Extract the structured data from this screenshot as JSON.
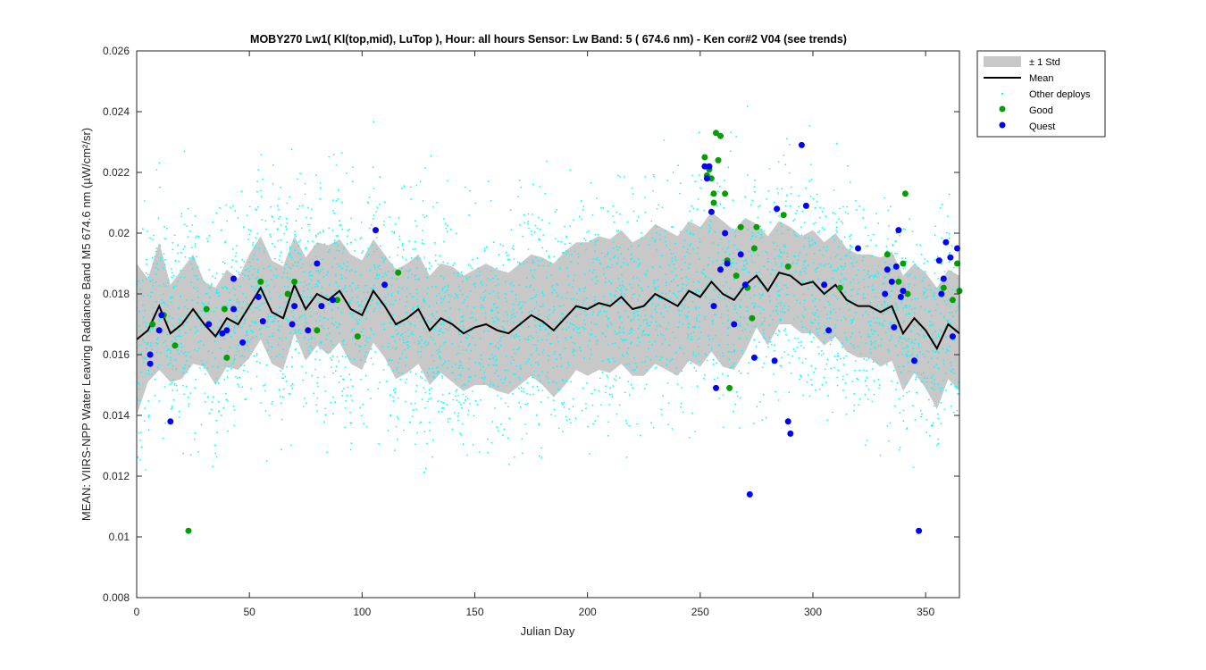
{
  "chart_data": {
    "type": "scatter",
    "title": "MOBY270   Lw1( Kl(top,mid), LuTop ),   Hour: all hours  Sensor: Lw Band: 5 ( 674.6 nm)  - Ken cor#2 V04 (see trends)",
    "xlabel": "Julian Day",
    "ylabel": "MEAN: VIIRS-NPP Water Leaving Radiance Band M5 674.6 nm (µW/cm²/sr)",
    "xlim": [
      0,
      365
    ],
    "ylim": [
      0.008,
      0.026
    ],
    "xticks": [
      0,
      50,
      100,
      150,
      200,
      250,
      300,
      350
    ],
    "yticks": [
      0.008,
      0.01,
      0.012,
      0.014,
      0.016,
      0.018,
      0.02,
      0.022,
      0.024,
      0.026
    ],
    "xtick_labels": [
      "0",
      "50",
      "100",
      "150",
      "200",
      "250",
      "300",
      "350"
    ],
    "ytick_labels": [
      "0.008",
      "0.01",
      "0.012",
      "0.014",
      "0.016",
      "0.018",
      "0.02",
      "0.022",
      "0.024",
      "0.026"
    ],
    "legend_position": "outside-top-right",
    "legend": [
      "± 1 Std",
      "Mean",
      "Other deploys",
      "Good",
      "Quest"
    ],
    "colors": {
      "std_band": "#c8c8c8",
      "mean": "#000000",
      "other": "#00ffff",
      "good": "#00a000",
      "quest": "#0000ff"
    },
    "mean": {
      "x": [
        0,
        5,
        10,
        15,
        20,
        25,
        30,
        35,
        40,
        45,
        50,
        55,
        60,
        65,
        70,
        75,
        80,
        85,
        90,
        95,
        100,
        105,
        110,
        115,
        120,
        125,
        130,
        135,
        140,
        145,
        150,
        155,
        160,
        165,
        170,
        175,
        180,
        185,
        190,
        195,
        200,
        205,
        210,
        215,
        220,
        225,
        230,
        235,
        240,
        245,
        250,
        255,
        260,
        265,
        270,
        275,
        280,
        285,
        290,
        295,
        300,
        305,
        310,
        315,
        320,
        325,
        330,
        335,
        340,
        345,
        350,
        355,
        360,
        365
      ],
      "y": [
        0.0165,
        0.0168,
        0.0176,
        0.0167,
        0.017,
        0.0175,
        0.017,
        0.0166,
        0.0172,
        0.017,
        0.0176,
        0.0182,
        0.0174,
        0.0172,
        0.0183,
        0.0175,
        0.018,
        0.0178,
        0.0181,
        0.0175,
        0.0173,
        0.0181,
        0.0176,
        0.017,
        0.0172,
        0.0175,
        0.0168,
        0.0172,
        0.017,
        0.0167,
        0.0169,
        0.017,
        0.0168,
        0.0167,
        0.017,
        0.0173,
        0.0171,
        0.0168,
        0.0172,
        0.0176,
        0.0175,
        0.0177,
        0.0176,
        0.0179,
        0.0175,
        0.0176,
        0.018,
        0.0178,
        0.0176,
        0.0181,
        0.0179,
        0.0184,
        0.018,
        0.0178,
        0.0183,
        0.0186,
        0.0181,
        0.0187,
        0.0186,
        0.0183,
        0.0184,
        0.018,
        0.0183,
        0.0178,
        0.0176,
        0.0176,
        0.0174,
        0.0176,
        0.0167,
        0.0172,
        0.0168,
        0.0162,
        0.017,
        0.0167
      ]
    },
    "std_upper": [
      0.019,
      0.0185,
      0.0197,
      0.0183,
      0.0188,
      0.0193,
      0.0184,
      0.0182,
      0.0188,
      0.0185,
      0.0193,
      0.0199,
      0.0191,
      0.0189,
      0.0199,
      0.0192,
      0.0197,
      0.0196,
      0.0198,
      0.0193,
      0.0191,
      0.0198,
      0.0193,
      0.0188,
      0.019,
      0.0193,
      0.0186,
      0.019,
      0.0189,
      0.0186,
      0.0188,
      0.019,
      0.0188,
      0.0187,
      0.019,
      0.0193,
      0.0192,
      0.019,
      0.0194,
      0.0197,
      0.0197,
      0.0199,
      0.0198,
      0.0201,
      0.0197,
      0.0199,
      0.0203,
      0.0201,
      0.0199,
      0.0204,
      0.0202,
      0.0207,
      0.0204,
      0.0201,
      0.0205,
      0.0203,
      0.0199,
      0.0204,
      0.0202,
      0.0199,
      0.0201,
      0.0197,
      0.02,
      0.0195,
      0.0193,
      0.0193,
      0.0192,
      0.0194,
      0.0186,
      0.019,
      0.0187,
      0.0182,
      0.0188,
      0.0186
    ],
    "std_lower": [
      0.014,
      0.0151,
      0.0155,
      0.0151,
      0.0152,
      0.0157,
      0.0156,
      0.015,
      0.0156,
      0.0155,
      0.0159,
      0.0165,
      0.0157,
      0.0155,
      0.0167,
      0.0158,
      0.0163,
      0.016,
      0.0164,
      0.0157,
      0.0155,
      0.0164,
      0.0159,
      0.0152,
      0.0154,
      0.0157,
      0.015,
      0.0154,
      0.0151,
      0.0148,
      0.015,
      0.015,
      0.0148,
      0.0147,
      0.015,
      0.0153,
      0.015,
      0.0146,
      0.015,
      0.0155,
      0.0153,
      0.0155,
      0.0154,
      0.0157,
      0.0153,
      0.0153,
      0.0157,
      0.0155,
      0.0153,
      0.0158,
      0.0156,
      0.0161,
      0.0156,
      0.0155,
      0.0161,
      0.0169,
      0.0163,
      0.017,
      0.017,
      0.0167,
      0.0167,
      0.0163,
      0.0166,
      0.0161,
      0.0159,
      0.0159,
      0.0156,
      0.0158,
      0.0148,
      0.0154,
      0.0149,
      0.0142,
      0.0152,
      0.0148
    ],
    "other_deploys_description": "dense cloud of ~4000 cyan points spread around the mean, mostly between 0.013 and 0.022",
    "good": {
      "x": [
        7,
        12,
        17,
        23,
        31,
        39,
        40,
        55,
        67,
        70,
        80,
        89,
        98,
        116,
        252,
        253,
        254,
        255,
        256,
        256,
        257,
        258,
        259,
        261,
        262,
        263,
        266,
        268,
        271,
        273,
        274,
        275,
        287,
        289,
        312,
        333,
        338,
        340,
        341,
        342,
        345,
        358,
        362,
        364,
        365
      ],
      "y": [
        0.017,
        0.0173,
        0.0163,
        0.0102,
        0.0175,
        0.0175,
        0.0159,
        0.0184,
        0.018,
        0.0184,
        0.0168,
        0.0178,
        0.0166,
        0.0187,
        0.0225,
        0.0219,
        0.0221,
        0.0218,
        0.021,
        0.0213,
        0.0233,
        0.0224,
        0.0232,
        0.0213,
        0.0191,
        0.0149,
        0.0186,
        0.0202,
        0.0182,
        0.0172,
        0.0195,
        0.0202,
        0.0206,
        0.0189,
        0.0182,
        0.0193,
        0.0184,
        0.019,
        0.0213,
        0.018,
        0.0158,
        0.0182,
        0.0178,
        0.019,
        0.0181
      ]
    },
    "quest": {
      "x": [
        6,
        6,
        10,
        11,
        15,
        32,
        38,
        40,
        43,
        43,
        47,
        54,
        56,
        69,
        70,
        76,
        80,
        82,
        87,
        106,
        110,
        252,
        253,
        254,
        255,
        256,
        257,
        259,
        261,
        262,
        265,
        268,
        270,
        272,
        274,
        283,
        284,
        289,
        290,
        295,
        297,
        305,
        307,
        320,
        332,
        333,
        335,
        336,
        337,
        338,
        339,
        340,
        345,
        347,
        356,
        357,
        358,
        359,
        361,
        362,
        364
      ],
      "y": [
        0.016,
        0.0157,
        0.0168,
        0.0173,
        0.0138,
        0.017,
        0.0167,
        0.0168,
        0.0175,
        0.0185,
        0.0164,
        0.0179,
        0.0171,
        0.017,
        0.0176,
        0.0168,
        0.019,
        0.0176,
        0.0178,
        0.0201,
        0.0183,
        0.0222,
        0.0218,
        0.0222,
        0.0207,
        0.0176,
        0.0149,
        0.0188,
        0.02,
        0.019,
        0.017,
        0.0193,
        0.0183,
        0.0114,
        0.0159,
        0.0158,
        0.0208,
        0.0138,
        0.0134,
        0.0229,
        0.0209,
        0.0183,
        0.0168,
        0.0195,
        0.018,
        0.0188,
        0.0184,
        0.0169,
        0.0189,
        0.0201,
        0.0179,
        0.0181,
        0.0158,
        0.0102,
        0.0191,
        0.018,
        0.0185,
        0.0197,
        0.0192,
        0.0166,
        0.0195
      ]
    }
  }
}
